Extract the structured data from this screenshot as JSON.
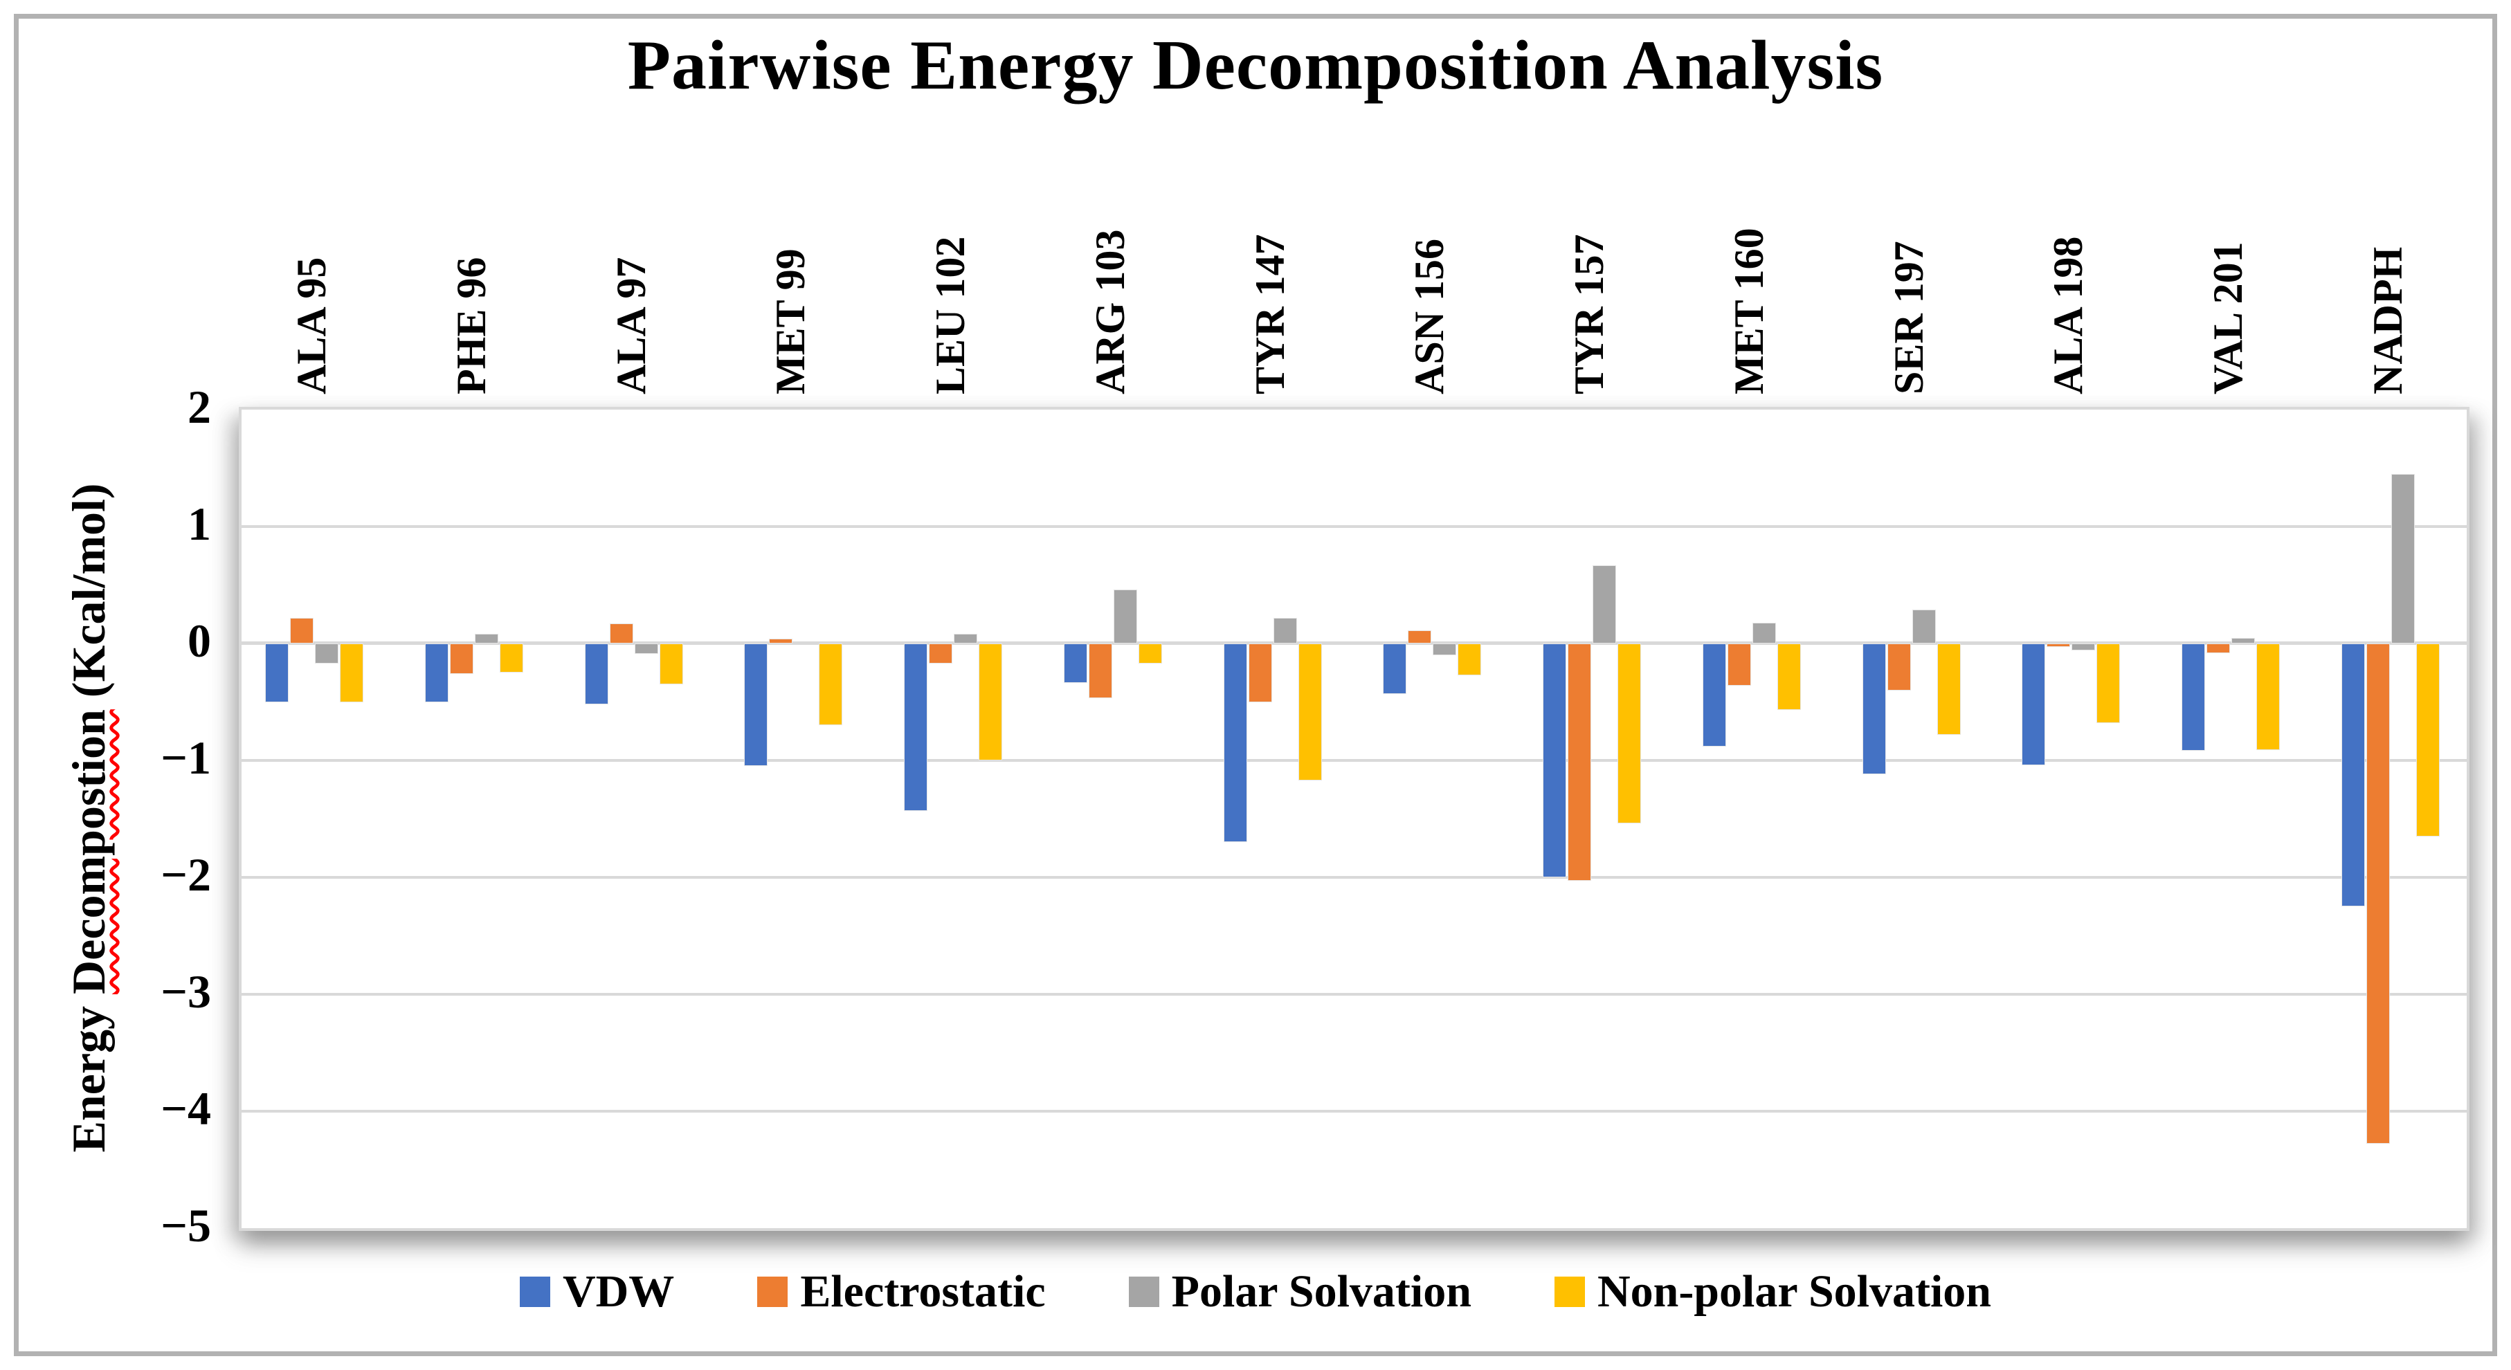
{
  "figure": {
    "background_color": "#ffffff",
    "frame_color": "#b2b2b2",
    "gridline_color": "#d9d9d9"
  },
  "chart_data": {
    "type": "bar",
    "title": "Pairwise Energy Decomposition Analysis",
    "xlabel": "",
    "ylabel": {
      "prefix": "Energy ",
      "misspelled": "Decompostion",
      "suffix": " (Kcal/mol)",
      "full": "Energy Decompostion (Kcal/mol)",
      "spellcheck_underline_color": "#ff0000"
    },
    "ylim": [
      -5,
      2
    ],
    "yticks": [
      2,
      1,
      0,
      -1,
      -2,
      -3,
      -4,
      -5
    ],
    "yticks_labels": [
      "2",
      "1",
      "0",
      "−1",
      "−2",
      "−3",
      "−4",
      "−5"
    ],
    "grid": true,
    "legend_position": "bottom",
    "categories": [
      "ALA 95",
      "PHE 96",
      "ALA 97",
      "MET 99",
      "LEU 102",
      "ARG 103",
      "TYR 147",
      "ASN 156",
      "TYR 157",
      "MET 160",
      "SER 197",
      "ALA 198",
      "VAL 201",
      "NADPH"
    ],
    "series": [
      {
        "name": "VDW",
        "color": "#4472C4",
        "values": [
          -0.5,
          -0.5,
          -0.52,
          -1.05,
          -1.43,
          -0.34,
          -1.7,
          -0.43,
          -2.0,
          -0.88,
          -1.12,
          -1.04,
          -0.92,
          -2.25
        ]
      },
      {
        "name": "Electrostatic",
        "color": "#ED7D31",
        "values": [
          0.22,
          -0.26,
          0.17,
          0.04,
          -0.17,
          -0.47,
          -0.5,
          0.11,
          -2.03,
          -0.36,
          -0.4,
          -0.03,
          -0.08,
          -4.28
        ]
      },
      {
        "name": "Polar Solvation",
        "color": "#A5A5A5",
        "values": [
          -0.17,
          0.08,
          -0.09,
          0.0,
          0.08,
          0.46,
          0.22,
          -0.1,
          0.67,
          0.18,
          0.29,
          -0.06,
          0.05,
          1.45
        ]
      },
      {
        "name": "Non-polar Solvation",
        "color": "#FFC000",
        "values": [
          -0.5,
          -0.25,
          -0.35,
          -0.7,
          -1.0,
          -0.17,
          -1.17,
          -0.27,
          -1.54,
          -0.57,
          -0.78,
          -0.68,
          -0.91,
          -1.65
        ]
      }
    ]
  }
}
